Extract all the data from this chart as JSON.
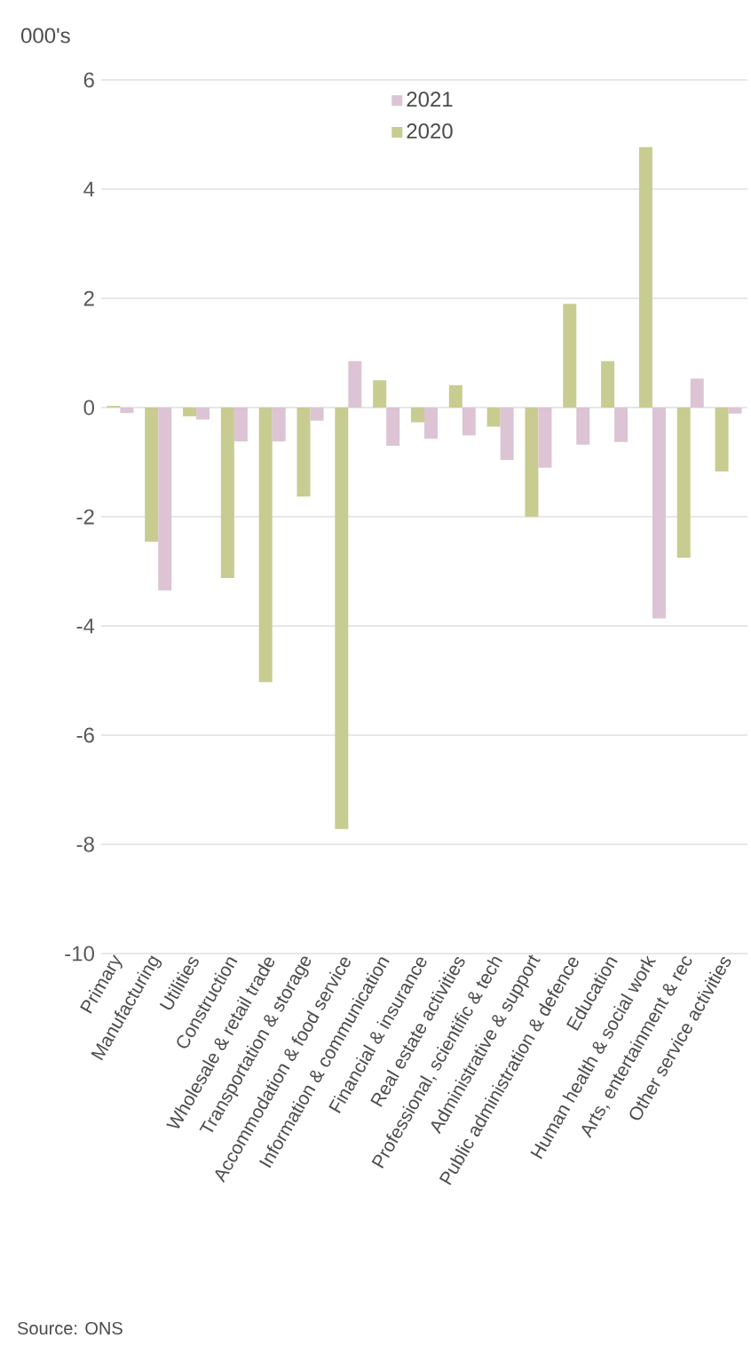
{
  "chart_data": {
    "type": "bar",
    "ylabel": "000's",
    "categories": [
      "Primary",
      "Manufacturing",
      "Utilities",
      "Construction",
      "Wholesale & retail trade",
      "Transportation & storage",
      "Accommodation & food service",
      "Information & communication",
      "Financial & insurance",
      "Real estate activities",
      "Professional, scientific & tech",
      "Administrative & support",
      "Public administration & defence",
      "Education",
      "Human health & social work",
      "Arts, entertainment & rec",
      "Other service activities"
    ],
    "series": [
      {
        "name": "2020",
        "color": "#c8cc90",
        "values": [
          0.03,
          -2.46,
          -0.16,
          -3.12,
          -5.03,
          -1.63,
          -7.72,
          0.5,
          -0.27,
          0.41,
          -0.35,
          -2.0,
          1.9,
          0.85,
          4.77,
          -2.75,
          -1.17
        ]
      },
      {
        "name": "2021",
        "color": "#dcc4d4",
        "values": [
          -0.1,
          -3.35,
          -0.22,
          -0.62,
          -0.62,
          -0.24,
          0.85,
          -0.7,
          -0.57,
          -0.51,
          -0.96,
          -1.1,
          -0.68,
          -0.63,
          -3.86,
          0.53,
          -0.11
        ]
      }
    ],
    "ylim": [
      -10,
      6
    ],
    "yticks": [
      -10,
      -8,
      -6,
      -4,
      -2,
      0,
      2,
      4,
      6
    ],
    "grid": "y",
    "legend": "top",
    "annotations": [
      "Source: ONS"
    ]
  }
}
